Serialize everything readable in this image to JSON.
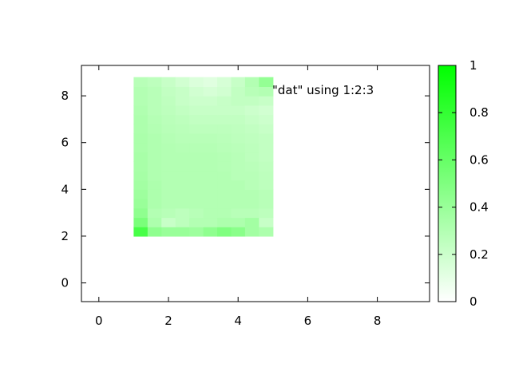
{
  "chart_data": {
    "type": "heatmap",
    "key_entry": "\"dat\" using 1:2:3",
    "x_axis": {
      "range": [
        -0.5,
        9.5
      ],
      "ticks": [
        0,
        2,
        4,
        6,
        8
      ],
      "tick_labels": [
        "0",
        "2",
        "4",
        "6",
        "8"
      ]
    },
    "y_axis": {
      "range": [
        -0.8,
        9.3
      ],
      "ticks": [
        0,
        2,
        4,
        6,
        8
      ],
      "tick_labels": [
        "0",
        "2",
        "4",
        "6",
        "8"
      ]
    },
    "colorbar": {
      "range": [
        0,
        1
      ],
      "ticks": [
        0,
        0.2,
        0.4,
        0.6,
        0.8,
        1
      ],
      "tick_labels": [
        "0",
        "0.2",
        "0.4",
        "0.6",
        "0.8",
        "1"
      ],
      "low_color": "#ffffff",
      "high_color": "#00ff00"
    },
    "grid": false,
    "legend_position": "top-right",
    "cells": {
      "x": [
        1.2,
        1.6,
        2.0,
        2.4,
        2.8,
        3.2,
        3.6,
        4.0,
        4.4,
        4.8
      ],
      "y": [
        2.2,
        2.6,
        3.0,
        3.4,
        3.8,
        4.2,
        4.6,
        5.0,
        5.4,
        5.8,
        6.2,
        6.6,
        7.0,
        7.4,
        7.8,
        8.2,
        8.6
      ],
      "z": [
        [
          0.72,
          0.44,
          0.4,
          0.4,
          0.38,
          0.44,
          0.5,
          0.46,
          0.36,
          0.32
        ],
        [
          0.52,
          0.32,
          0.22,
          0.26,
          0.3,
          0.3,
          0.32,
          0.32,
          0.36,
          0.22
        ],
        [
          0.44,
          0.3,
          0.28,
          0.26,
          0.28,
          0.3,
          0.3,
          0.28,
          0.28,
          0.26
        ],
        [
          0.4,
          0.32,
          0.3,
          0.3,
          0.3,
          0.3,
          0.3,
          0.3,
          0.3,
          0.28
        ],
        [
          0.38,
          0.32,
          0.3,
          0.3,
          0.3,
          0.3,
          0.3,
          0.3,
          0.3,
          0.28
        ],
        [
          0.36,
          0.32,
          0.3,
          0.3,
          0.3,
          0.3,
          0.3,
          0.3,
          0.28,
          0.26
        ],
        [
          0.35,
          0.31,
          0.3,
          0.3,
          0.3,
          0.3,
          0.3,
          0.28,
          0.28,
          0.26
        ],
        [
          0.34,
          0.31,
          0.3,
          0.3,
          0.3,
          0.3,
          0.29,
          0.28,
          0.27,
          0.25
        ],
        [
          0.34,
          0.31,
          0.3,
          0.3,
          0.3,
          0.3,
          0.29,
          0.28,
          0.26,
          0.24
        ],
        [
          0.33,
          0.31,
          0.3,
          0.29,
          0.29,
          0.29,
          0.28,
          0.27,
          0.26,
          0.24
        ],
        [
          0.33,
          0.31,
          0.29,
          0.28,
          0.28,
          0.28,
          0.27,
          0.26,
          0.25,
          0.24
        ],
        [
          0.32,
          0.3,
          0.28,
          0.27,
          0.26,
          0.26,
          0.26,
          0.25,
          0.24,
          0.22
        ],
        [
          0.32,
          0.29,
          0.27,
          0.26,
          0.24,
          0.24,
          0.24,
          0.24,
          0.22,
          0.2
        ],
        [
          0.31,
          0.28,
          0.26,
          0.24,
          0.22,
          0.22,
          0.22,
          0.22,
          0.2,
          0.18
        ],
        [
          0.3,
          0.28,
          0.25,
          0.22,
          0.2,
          0.2,
          0.22,
          0.24,
          0.24,
          0.22
        ],
        [
          0.3,
          0.28,
          0.24,
          0.22,
          0.18,
          0.16,
          0.18,
          0.24,
          0.28,
          0.3
        ],
        [
          0.28,
          0.26,
          0.22,
          0.18,
          0.14,
          0.12,
          0.16,
          0.22,
          0.3,
          0.42
        ]
      ]
    }
  }
}
